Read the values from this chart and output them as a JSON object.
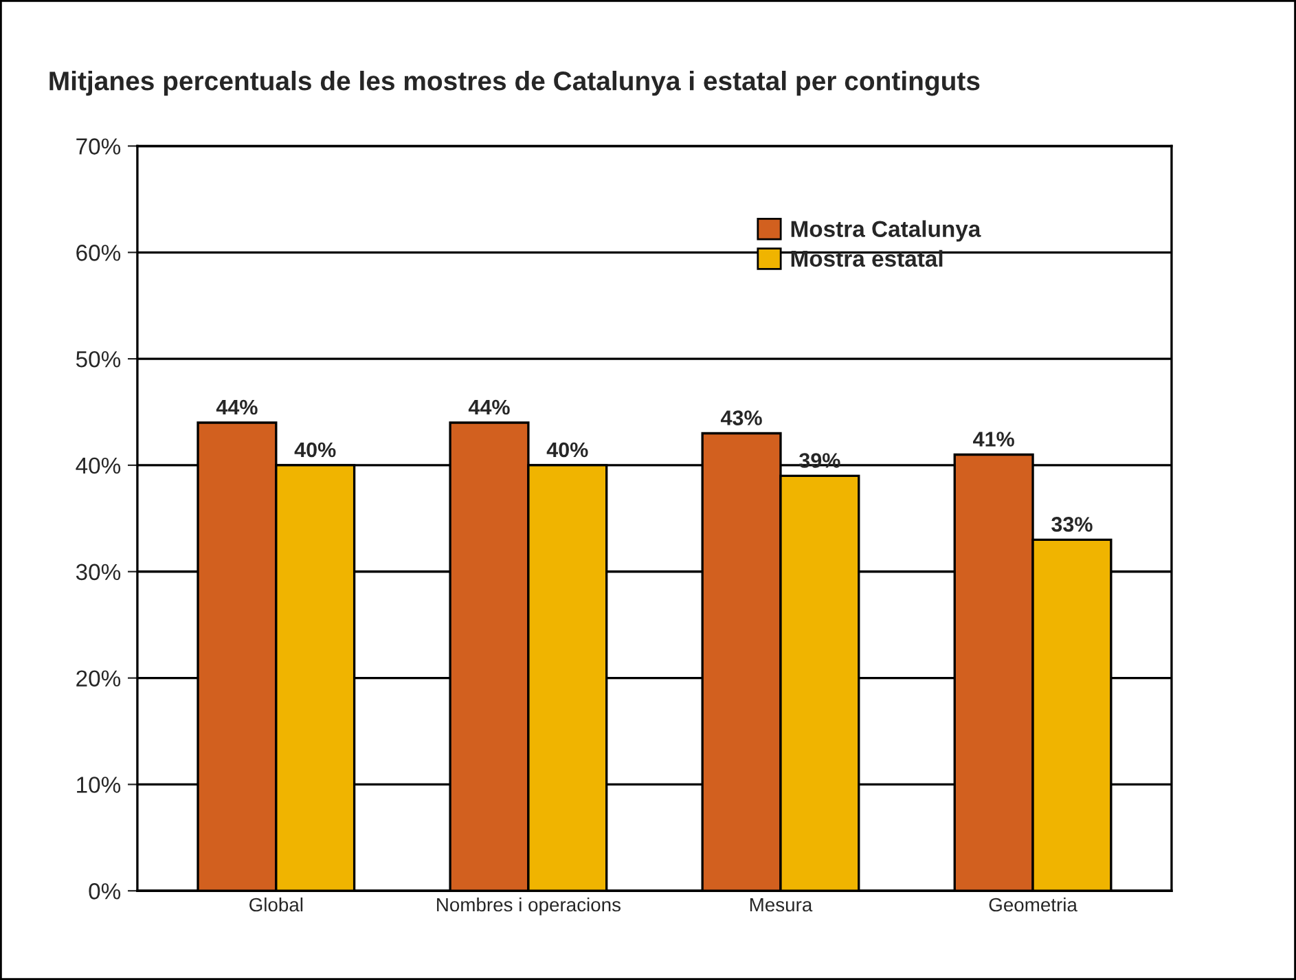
{
  "chart_data": {
    "type": "bar",
    "title": "Mitjanes percentuals de les mostres de Catalunya i estatal per continguts",
    "categories": [
      "Global",
      "Nombres i operacions",
      "Mesura",
      "Geometria"
    ],
    "series": [
      {
        "name": "Mostra Catalunya",
        "color": "#d2601f",
        "values": [
          44,
          44,
          43,
          41
        ],
        "value_labels": [
          "44%",
          "44%",
          "43%",
          "41%"
        ]
      },
      {
        "name": "Mostra estatal",
        "color": "#f0b400",
        "values": [
          40,
          40,
          39,
          33
        ],
        "value_labels": [
          "40%",
          "40%",
          "39%",
          "33%"
        ]
      }
    ],
    "ylim": [
      0,
      70
    ],
    "yticks": [
      {
        "value": 0,
        "label": "0%"
      },
      {
        "value": 10,
        "label": "10%"
      },
      {
        "value": 20,
        "label": "20%"
      },
      {
        "value": 30,
        "label": "30%"
      },
      {
        "value": 40,
        "label": "40%"
      },
      {
        "value": 50,
        "label": "50%"
      },
      {
        "value": 60,
        "label": "60%"
      },
      {
        "value": 70,
        "label": "70%"
      }
    ],
    "grid": "y",
    "legend": "top right"
  }
}
